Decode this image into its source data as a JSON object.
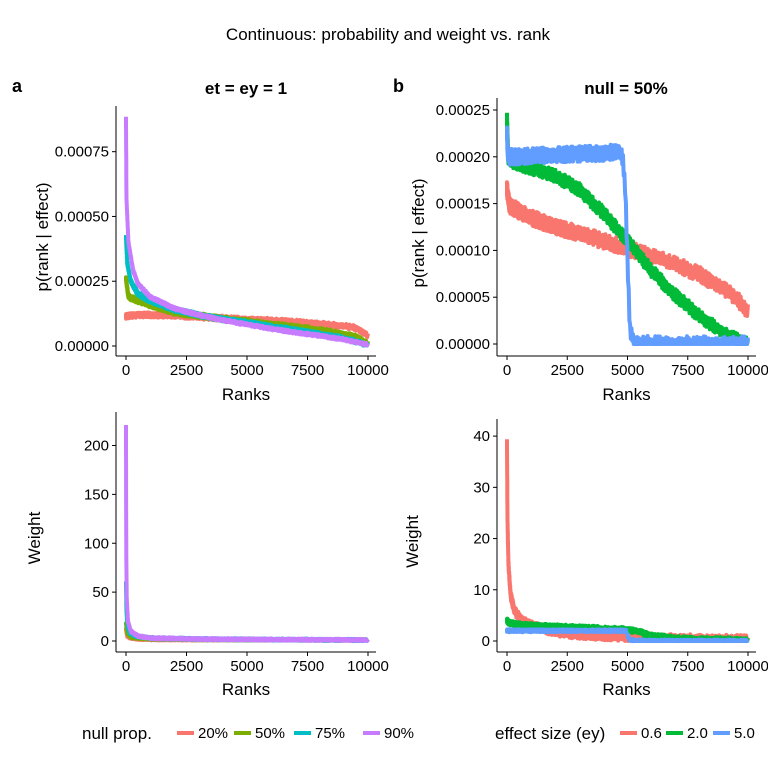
{
  "title": "Continuous: probability and weight vs. rank",
  "colors": {
    "red": "#F8766D",
    "olive": "#7CAE00",
    "cyan": "#00BFC4",
    "purple": "#C77CFF",
    "green": "#00BA38",
    "blue": "#619CFF"
  },
  "legend_left": {
    "title": "null prop.",
    "items": [
      {
        "label": "20%",
        "color": "#F8766D"
      },
      {
        "label": "50%",
        "color": "#7CAE00"
      },
      {
        "label": "75%",
        "color": "#00BFC4"
      },
      {
        "label": "90%",
        "color": "#C77CFF"
      }
    ]
  },
  "legend_right": {
    "title": "effect size (ey)",
    "items": [
      {
        "label": "0.6",
        "color": "#F8766D"
      },
      {
        "label": "2.0",
        "color": "#00BA38"
      },
      {
        "label": "5.0",
        "color": "#619CFF"
      }
    ]
  },
  "chart_data": [
    {
      "id": "a-top",
      "tag": "a",
      "type": "line",
      "title": "et = ey = 1",
      "xlabel": "Ranks",
      "ylabel": "p(rank | effect)",
      "xlim": [
        0,
        10000
      ],
      "ylim": [
        0,
        0.00088
      ],
      "xticks": [
        0,
        2500,
        5000,
        7500,
        10000
      ],
      "yticks": [
        0,
        0.00025,
        0.0005,
        0.00075
      ],
      "ytick_labels": [
        "0.00000",
        "0.00025",
        "0.00050",
        "0.00075"
      ],
      "series": [
        {
          "name": "20%",
          "color": "#F8766D",
          "noise": 7e-06,
          "x": [
            0,
            500,
            1000,
            2000,
            3000,
            4000,
            5000,
            6000,
            7000,
            8000,
            9000,
            9500,
            10000
          ],
          "y": [
            0.000115,
            0.00012,
            0.00012,
            0.000118,
            0.000112,
            0.000108,
            0.000102,
            9.8e-05,
            9.2e-05,
            8.6e-05,
            7.7e-05,
            7e-05,
            4e-05
          ]
        },
        {
          "name": "50%",
          "color": "#7CAE00",
          "noise": 7e-06,
          "x": [
            0,
            100,
            500,
            1000,
            2000,
            3000,
            4000,
            5000,
            6000,
            7000,
            8000,
            9000,
            9500,
            10000
          ],
          "y": [
            0.00026,
            0.00019,
            0.000175,
            0.000158,
            0.00013,
            0.000118,
            0.000105,
            9.5e-05,
            8.3e-05,
            7.3e-05,
            6.2e-05,
            4.5e-05,
            3.5e-05,
            1e-05
          ]
        },
        {
          "name": "75%",
          "color": "#00BFC4",
          "noise": 6e-06,
          "x": [
            0,
            50,
            200,
            500,
            1000,
            2000,
            3000,
            4000,
            5000,
            6000,
            7000,
            8000,
            9000,
            10000
          ],
          "y": [
            0.00042,
            0.00032,
            0.00025,
            0.0002,
            0.000175,
            0.00014,
            0.00012,
            0.000103,
            9e-05,
            7.5e-05,
            6.2e-05,
            4.5e-05,
            3e-05,
            5e-06
          ]
        },
        {
          "name": "90%",
          "color": "#C77CFF",
          "noise": 4e-06,
          "x": [
            0,
            20,
            100,
            300,
            500,
            1000,
            2000,
            3000,
            4000,
            5000,
            6000,
            7000,
            8000,
            9000,
            10000
          ],
          "y": [
            0.00088,
            0.00057,
            0.0004,
            0.00029,
            0.00024,
            0.00019,
            0.000145,
            0.00012,
            0.0001,
            8.3e-05,
            6.7e-05,
            5.2e-05,
            4e-05,
            2.5e-05,
            5e-06
          ]
        }
      ]
    },
    {
      "id": "b-top",
      "tag": "b",
      "type": "line",
      "title": "null = 50%",
      "xlabel": "Ranks",
      "ylabel": "p(rank | effect)",
      "xlim": [
        0,
        10000
      ],
      "ylim": [
        0,
        0.00025
      ],
      "xticks": [
        0,
        2500,
        5000,
        7500,
        10000
      ],
      "yticks": [
        0,
        5e-05,
        0.0001,
        0.00015,
        0.0002,
        0.00025
      ],
      "ytick_labels": [
        "0.00000",
        "0.00005",
        "0.00010",
        "0.00015",
        "0.00020",
        "0.00025"
      ],
      "series": [
        {
          "name": "0.6",
          "color": "#F8766D",
          "noise": 6e-06,
          "x": [
            0,
            100,
            500,
            1000,
            2000,
            3000,
            4000,
            5000,
            6000,
            7000,
            8000,
            9000,
            9500,
            10000
          ],
          "y": [
            0.000165,
            0.000148,
            0.000142,
            0.000135,
            0.000125,
            0.000118,
            0.00011,
            0.000102,
            9.4e-05,
            8.5e-05,
            7.4e-05,
            6e-05,
            5e-05,
            3.5e-05
          ]
        },
        {
          "name": "2.0",
          "color": "#00BA38",
          "noise": 5e-06,
          "x": [
            0,
            50,
            200,
            500,
            1000,
            2000,
            3000,
            4000,
            5000,
            6000,
            7000,
            8000,
            9000,
            9500,
            10000
          ],
          "y": [
            0.00024,
            0.0002,
            0.000195,
            0.000192,
            0.000188,
            0.00018,
            0.000165,
            0.00014,
            0.00011,
            7.8e-05,
            5.2e-05,
            3e-05,
            1.2e-05,
            5e-06,
            0
          ]
        },
        {
          "name": "5.0",
          "color": "#619CFF",
          "noise": 6e-06,
          "x": [
            0,
            30,
            100,
            500,
            1000,
            2000,
            3000,
            4000,
            4600,
            4800,
            4900,
            5000,
            5100,
            5300,
            6000,
            7000,
            8000,
            9000,
            10000
          ],
          "y": [
            0.000225,
            0.000205,
            0.0002,
            0.0002,
            0.000201,
            0.000202,
            0.000203,
            0.000204,
            0.000205,
            0.0002,
            0.00017,
            9e-05,
            1.5e-05,
            1e-06,
            0,
            0,
            0,
            0,
            0
          ]
        }
      ]
    },
    {
      "id": "a-bottom",
      "type": "line",
      "title": "",
      "xlabel": "Ranks",
      "ylabel": "Weight",
      "xlim": [
        0,
        10000
      ],
      "ylim": [
        0,
        222
      ],
      "xticks": [
        0,
        2500,
        5000,
        7500,
        10000
      ],
      "yticks": [
        0,
        50,
        100,
        150,
        200
      ],
      "ytick_labels": [
        "0",
        "50",
        "100",
        "150",
        "200"
      ],
      "series": [
        {
          "name": "20%",
          "color": "#F8766D",
          "noise": 0.6,
          "x": [
            0,
            50,
            200,
            500,
            1000,
            3000,
            6000,
            10000
          ],
          "y": [
            12,
            5,
            3,
            2,
            1.5,
            1.3,
            1.2,
            1
          ]
        },
        {
          "name": "50%",
          "color": "#7CAE00",
          "noise": 0.6,
          "x": [
            0,
            50,
            200,
            500,
            1000,
            3000,
            6000,
            10000
          ],
          "y": [
            18,
            8,
            4,
            3,
            2.2,
            1.5,
            1.3,
            1
          ]
        },
        {
          "name": "75%",
          "color": "#00BFC4",
          "noise": 0.8,
          "x": [
            0,
            20,
            60,
            150,
            400,
            1000,
            3000,
            6000,
            10000
          ],
          "y": [
            60,
            30,
            15,
            8,
            5,
            3,
            2,
            1.5,
            1
          ]
        },
        {
          "name": "90%",
          "color": "#C77CFF",
          "noise": 0.8,
          "x": [
            0,
            10,
            30,
            80,
            200,
            500,
            1000,
            3000,
            6000,
            10000
          ],
          "y": [
            220,
            100,
            45,
            20,
            10,
            5,
            3,
            2,
            1.5,
            1
          ]
        }
      ]
    },
    {
      "id": "b-bottom",
      "type": "line",
      "title": "",
      "xlabel": "Ranks",
      "ylabel": "Weight",
      "xlim": [
        0,
        10000
      ],
      "ylim": [
        0,
        41
      ],
      "xticks": [
        0,
        2500,
        5000,
        7500,
        10000
      ],
      "yticks": [
        0,
        10,
        20,
        30,
        40
      ],
      "ytick_labels": [
        "0",
        "10",
        "20",
        "30",
        "40"
      ],
      "series": [
        {
          "name": "0.6",
          "color": "#F8766D",
          "noise": 0.6,
          "x": [
            0,
            20,
            60,
            150,
            300,
            600,
            1000,
            2000,
            3000,
            5000,
            7000,
            10000
          ],
          "y": [
            39,
            24,
            15,
            9,
            6,
            4,
            3,
            1.8,
            1.2,
            0.8,
            0.5,
            0.3
          ]
        },
        {
          "name": "2.0",
          "color": "#00BA38",
          "noise": 0.35,
          "x": [
            0,
            100,
            500,
            1000,
            2000,
            3000,
            4000,
            5000,
            5500,
            6000,
            7000,
            8000,
            10000
          ],
          "y": [
            4,
            3.5,
            3.2,
            3,
            2.8,
            2.6,
            2.4,
            2.2,
            1.8,
            1,
            0.5,
            0.3,
            0.2
          ]
        },
        {
          "name": "5.0",
          "color": "#619CFF",
          "noise": 0.2,
          "x": [
            0,
            100,
            1000,
            2000,
            3000,
            4000,
            4800,
            4950,
            5000,
            5100,
            6000,
            10000
          ],
          "y": [
            2,
            2,
            2,
            2,
            2,
            2,
            2,
            2,
            1,
            0.1,
            0,
            0
          ]
        }
      ]
    }
  ]
}
